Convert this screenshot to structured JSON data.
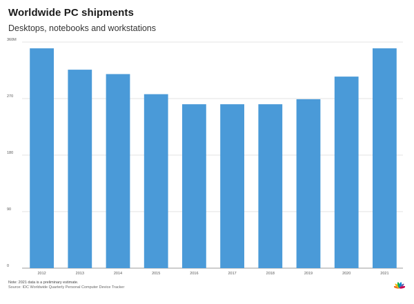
{
  "header": {
    "title": "Worldwide PC shipments",
    "subtitle": "Desktops, notebooks and workstations"
  },
  "footer": {
    "note": "Note: 2021 data is a preliminary estimate.",
    "source": "Source: IDC Worldwide Quarterly Personal Computer Device Tracker"
  },
  "logo": {
    "icon": "peacock-logo-icon",
    "colors": [
      "#f26f21",
      "#fcb711",
      "#0db14b",
      "#0089d0",
      "#6460aa",
      "#cc004c"
    ]
  },
  "chart_data": {
    "type": "bar",
    "categories": [
      "2012",
      "2013",
      "2014",
      "2015",
      "2016",
      "2017",
      "2018",
      "2019",
      "2020",
      "2021"
    ],
    "values": [
      350,
      316,
      309,
      277,
      261,
      261,
      261,
      269,
      305,
      350
    ],
    "ylim": [
      0,
      360
    ],
    "yticks": [
      0,
      90,
      180,
      270,
      360
    ],
    "ytick_labels": [
      "0",
      "90",
      "180",
      "270",
      "360M"
    ],
    "bar_color": "#4a9ad8",
    "grid": true
  }
}
